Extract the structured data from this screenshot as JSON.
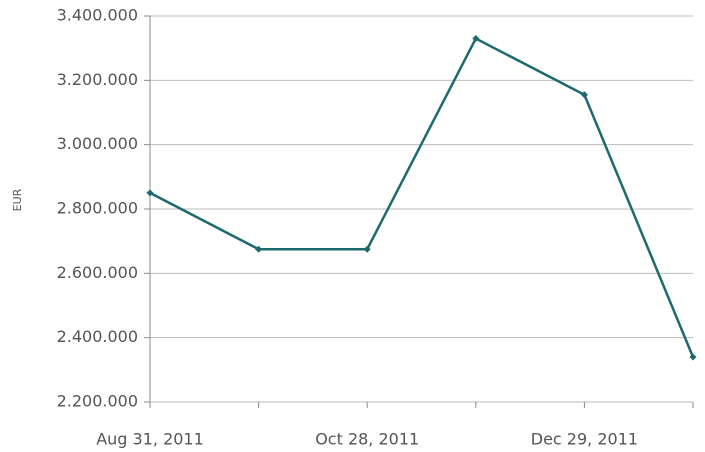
{
  "chart_data": {
    "type": "line",
    "ylabel": "EUR",
    "categories": [
      "Aug 31, 2011",
      null,
      "Oct 28, 2011",
      null,
      "Dec 29, 2011",
      null
    ],
    "series": [
      {
        "name": "EUR",
        "color": "#1d6a6e",
        "values": [
          2850000,
          2675000,
          2675000,
          3330000,
          3155000,
          2340000
        ]
      }
    ],
    "ylim": [
      2200000,
      3400000
    ],
    "yticks": [
      {
        "value": 2200000,
        "label": "2.200.000"
      },
      {
        "value": 2400000,
        "label": "2.400.000"
      },
      {
        "value": 2600000,
        "label": "2.600.000"
      },
      {
        "value": 2800000,
        "label": "2.800.000"
      },
      {
        "value": 3000000,
        "label": "3.000.000"
      },
      {
        "value": 3200000,
        "label": "3.200.000"
      },
      {
        "value": 3400000,
        "label": "3.400.000"
      }
    ],
    "grid": true
  }
}
